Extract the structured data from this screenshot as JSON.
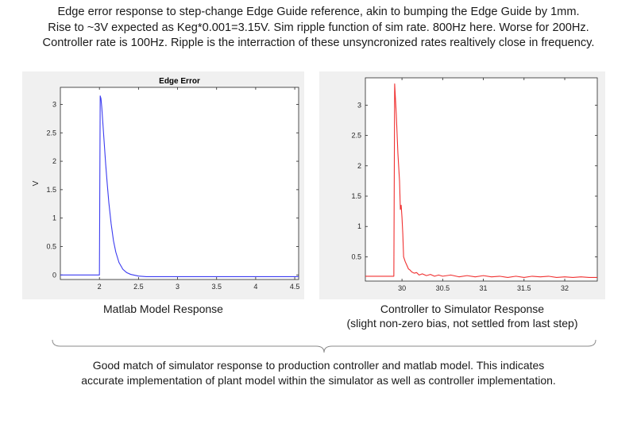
{
  "header": {
    "lines": [
      "Edge error response to step-change Edge Guide reference, akin to bumping the Edge Guide by 1mm.",
      "Rise to ~3V expected as Keg*0.001=3.15V. Sim ripple function of sim rate. 800Hz here. Worse for 200Hz.",
      "Controller rate is 100Hz. Ripple is the interraction of these unsyncronized rates realtively close in frequency."
    ]
  },
  "left_caption": {
    "line1": "Matlab Model Response"
  },
  "right_caption": {
    "line1": "Controller to Simulator Response",
    "line2": "(slight non-zero bias, not settled from last step)"
  },
  "footer": {
    "lines": [
      "Good match of simulator response to production controller and matlab model. This indicates",
      "accurate implementation of plant model within the simulator as well as controller implementation."
    ]
  },
  "colors": {
    "left_line": "#3b3bf0",
    "right_line": "#f03030",
    "panel_bg": "#f0f0f0"
  },
  "chart_data": [
    {
      "type": "line",
      "title": "Edge Error",
      "xlabel": "",
      "ylabel": "V",
      "xlim": [
        1.5,
        4.55
      ],
      "ylim": [
        -0.08,
        3.3
      ],
      "xticks": [
        2,
        2.5,
        3,
        3.5,
        4,
        4.5
      ],
      "xtick_labels": [
        "2",
        "2.5",
        "3",
        "3.5",
        "4",
        "4.5"
      ],
      "yticks": [
        0,
        0.5,
        1,
        1.5,
        2,
        2.5,
        3
      ],
      "ytick_labels": [
        "0",
        "0.5",
        "1",
        "1.5",
        "2",
        "2.5",
        "3"
      ],
      "grid": false,
      "series": [
        {
          "x": [
            1.5,
            1.98,
            1.99,
            2.0,
            2.01,
            2.02,
            2.03,
            2.04,
            2.06,
            2.08,
            2.1,
            2.12,
            2.15,
            2.18,
            2.21,
            2.25,
            2.3,
            2.35,
            2.4,
            2.5,
            2.6,
            2.8,
            3.0,
            3.5,
            4.0,
            4.55
          ],
          "y": [
            0.0,
            0.0,
            0.0,
            0.0,
            3.15,
            3.1,
            2.95,
            2.75,
            2.35,
            1.95,
            1.6,
            1.28,
            0.9,
            0.6,
            0.4,
            0.22,
            0.1,
            0.04,
            0.01,
            -0.02,
            -0.03,
            -0.03,
            -0.03,
            -0.03,
            -0.03,
            -0.03
          ]
        }
      ]
    },
    {
      "type": "line",
      "title": "",
      "xlabel": "",
      "ylabel": "",
      "xlim": [
        29.55,
        32.4
      ],
      "ylim": [
        0.1,
        3.45
      ],
      "xticks": [
        30,
        30.5,
        31,
        31.5,
        32
      ],
      "xtick_labels": [
        "30",
        "30.5",
        "31",
        "31.5",
        "32"
      ],
      "yticks": [
        0.5,
        1,
        1.5,
        2,
        2.5,
        3
      ],
      "ytick_labels": [
        "0.5",
        "1",
        "1.5",
        "2",
        "2.5",
        "3"
      ],
      "grid": false,
      "series": [
        {
          "x": [
            29.55,
            29.8,
            29.9,
            29.91,
            29.93,
            29.95,
            29.97,
            29.98,
            29.99,
            30.0,
            30.01,
            30.02,
            30.04,
            30.06,
            30.08,
            30.1,
            30.12,
            30.15,
            30.18,
            30.21,
            30.25,
            30.3,
            30.35,
            30.4,
            30.45,
            30.5,
            30.6,
            30.7,
            30.8,
            30.9,
            31.0,
            31.1,
            31.2,
            31.3,
            31.4,
            31.5,
            31.6,
            31.7,
            31.8,
            31.9,
            32.0,
            32.1,
            32.2,
            32.3,
            32.4
          ],
          "y": [
            0.18,
            0.18,
            0.18,
            3.35,
            2.85,
            2.2,
            1.75,
            1.28,
            1.35,
            1.15,
            0.88,
            0.5,
            0.42,
            0.36,
            0.3,
            0.28,
            0.25,
            0.23,
            0.24,
            0.2,
            0.22,
            0.19,
            0.21,
            0.18,
            0.2,
            0.18,
            0.2,
            0.17,
            0.19,
            0.17,
            0.19,
            0.17,
            0.18,
            0.16,
            0.18,
            0.16,
            0.18,
            0.17,
            0.18,
            0.16,
            0.17,
            0.16,
            0.17,
            0.16,
            0.16
          ]
        }
      ]
    }
  ]
}
